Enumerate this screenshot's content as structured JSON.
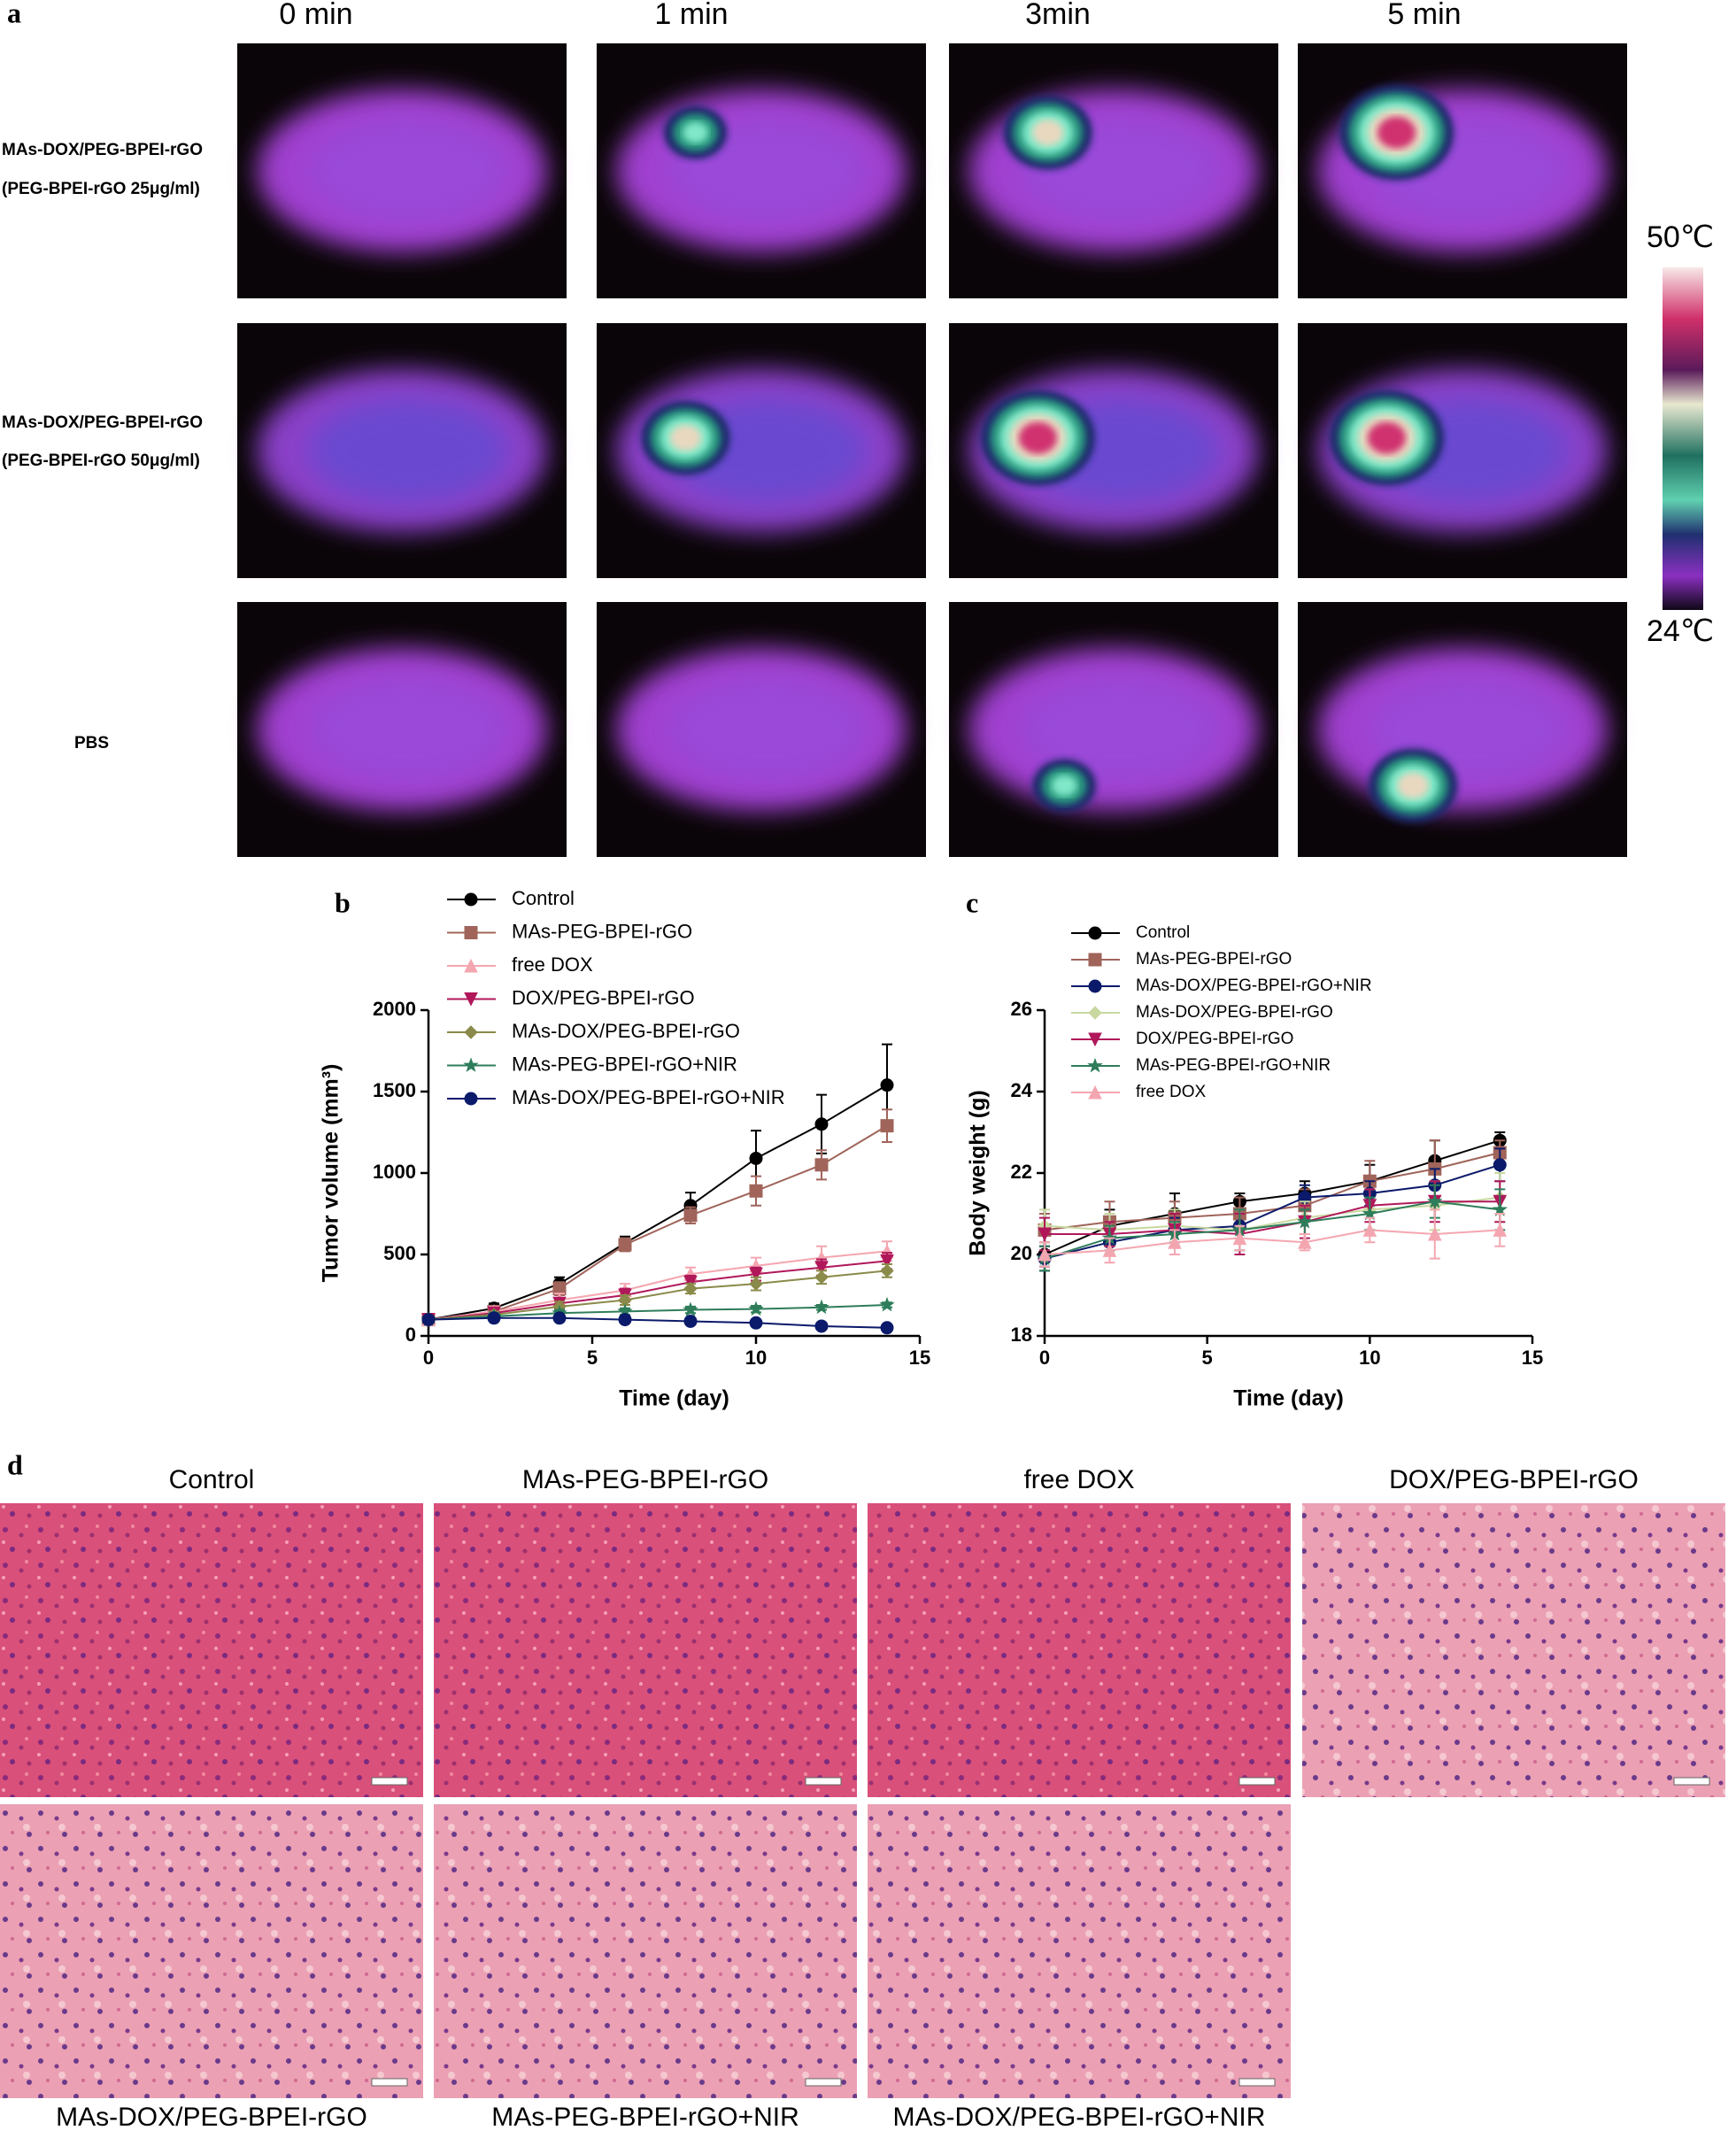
{
  "panel_a": {
    "label": "a",
    "time_labels": [
      "0 min",
      "1 min",
      "3min",
      "5 min"
    ],
    "rows": [
      [
        "MAs-DOX/PEG-BPEI-rGO",
        "(PEG-BPEI-rGO 25μg/ml)"
      ],
      [
        "MAs-DOX/PEG-BPEI-rGO",
        "(PEG-BPEI-rGO 50μg/ml)"
      ],
      [
        "PBS"
      ]
    ],
    "colorbar_max": "50℃",
    "colorbar_min": "24℃"
  },
  "chart_data": [
    {
      "type": "line",
      "panel": "b",
      "x_label": "Time (day)",
      "y_label": "Tumor volume (mm³)",
      "x": [
        0,
        2,
        4,
        6,
        8,
        10,
        12,
        14
      ],
      "xlim": [
        0,
        15
      ],
      "xticks": [
        0,
        5,
        10,
        15
      ],
      "ylim": [
        0,
        2000
      ],
      "yticks": [
        0,
        500,
        1000,
        1500,
        2000
      ],
      "series": [
        {
          "name": "Control",
          "color": "#000000",
          "marker": "circle",
          "values": [
            100,
            170,
            320,
            570,
            800,
            1090,
            1300,
            1540
          ],
          "errors": [
            20,
            30,
            40,
            40,
            80,
            170,
            180,
            250
          ]
        },
        {
          "name": "MAs-PEG-BPEI-rGO",
          "color": "#a0645a",
          "marker": "square",
          "values": [
            100,
            150,
            290,
            560,
            740,
            890,
            1050,
            1290
          ],
          "errors": [
            20,
            30,
            40,
            40,
            50,
            90,
            90,
            100
          ]
        },
        {
          "name": "free DOX",
          "color": "#f4a6b0",
          "marker": "triangle-up",
          "values": [
            100,
            150,
            220,
            280,
            380,
            430,
            480,
            520
          ],
          "errors": [
            20,
            30,
            40,
            40,
            40,
            50,
            70,
            60
          ]
        },
        {
          "name": "DOX/PEG-BPEI-rGO",
          "color": "#b0185a",
          "marker": "triangle-down",
          "values": [
            100,
            140,
            200,
            250,
            330,
            380,
            420,
            460
          ],
          "errors": [
            20,
            20,
            30,
            40,
            40,
            40,
            50,
            50
          ]
        },
        {
          "name": "MAs-DOX/PEG-BPEI-rGO",
          "color": "#8a8a4a",
          "marker": "diamond",
          "values": [
            100,
            130,
            180,
            220,
            290,
            320,
            360,
            400
          ],
          "errors": [
            20,
            20,
            30,
            30,
            30,
            40,
            40,
            40
          ]
        },
        {
          "name": "MAs-PEG-BPEI-rGO+NIR",
          "color": "#2e7d5a",
          "marker": "star",
          "values": [
            100,
            120,
            140,
            150,
            160,
            165,
            175,
            190
          ],
          "errors": [
            20,
            20,
            20,
            20,
            20,
            20,
            15,
            15
          ]
        },
        {
          "name": "MAs-DOX/PEG-BPEI-rGO+NIR",
          "color": "#0b1a6a",
          "marker": "circle",
          "values": [
            100,
            110,
            110,
            100,
            90,
            80,
            60,
            50
          ],
          "errors": [
            20,
            20,
            15,
            15,
            10,
            10,
            10,
            10
          ]
        }
      ]
    },
    {
      "type": "line",
      "panel": "c",
      "x_label": "Time (day)",
      "y_label": "Body weight (g)",
      "x": [
        0,
        2,
        4,
        6,
        8,
        10,
        12,
        14
      ],
      "xlim": [
        0,
        15
      ],
      "xticks": [
        0,
        5,
        10,
        15
      ],
      "ylim": [
        18,
        26
      ],
      "yticks": [
        18,
        20,
        22,
        24,
        26
      ],
      "series": [
        {
          "name": "Control",
          "color": "#000000",
          "marker": "circle",
          "values": [
            20.0,
            20.7,
            21.0,
            21.3,
            21.5,
            21.8,
            22.3,
            22.8
          ],
          "errors": [
            0.3,
            0.4,
            0.5,
            0.2,
            0.3,
            0.4,
            0.5,
            0.2
          ]
        },
        {
          "name": "MAs-PEG-BPEI-rGO",
          "color": "#a0645a",
          "marker": "square",
          "values": [
            20.6,
            20.8,
            20.9,
            21.0,
            21.2,
            21.8,
            22.1,
            22.5
          ],
          "errors": [
            0.4,
            0.5,
            0.4,
            0.4,
            0.4,
            0.5,
            0.7,
            0.3
          ]
        },
        {
          "name": "MAs-DOX/PEG-BPEI-rGO+NIR",
          "color": "#0b1a6a",
          "marker": "circle",
          "values": [
            19.9,
            20.3,
            20.6,
            20.7,
            21.4,
            21.5,
            21.7,
            22.2
          ],
          "errors": [
            0.3,
            0.3,
            0.3,
            0.4,
            0.3,
            0.3,
            0.4,
            0.4
          ]
        },
        {
          "name": "MAs-DOX/PEG-BPEI-rGO",
          "color": "#c8d8a0",
          "marker": "diamond",
          "values": [
            20.7,
            20.6,
            20.7,
            20.6,
            20.9,
            21.1,
            21.2,
            21.4
          ],
          "errors": [
            0.4,
            0.4,
            0.4,
            0.5,
            0.4,
            0.5,
            0.6,
            0.6
          ]
        },
        {
          "name": "DOX/PEG-BPEI-rGO",
          "color": "#b0185a",
          "marker": "triangle-down",
          "values": [
            20.5,
            20.5,
            20.6,
            20.5,
            20.8,
            21.2,
            21.3,
            21.3
          ],
          "errors": [
            0.4,
            0.3,
            0.4,
            0.5,
            0.4,
            0.4,
            0.5,
            0.5
          ]
        },
        {
          "name": "MAs-PEG-BPEI-rGO+NIR",
          "color": "#2e7d5a",
          "marker": "star",
          "values": [
            19.9,
            20.4,
            20.5,
            20.6,
            20.8,
            21.0,
            21.3,
            21.1
          ],
          "errors": [
            0.3,
            0.3,
            0.3,
            0.5,
            0.3,
            0.4,
            0.4,
            0.5
          ]
        },
        {
          "name": "free DOX",
          "color": "#f4a6b0",
          "marker": "triangle-up",
          "values": [
            20.0,
            20.1,
            20.3,
            20.4,
            20.3,
            20.6,
            20.5,
            20.6
          ],
          "errors": [
            0.3,
            0.3,
            0.3,
            0.3,
            0.2,
            0.3,
            0.6,
            0.4
          ]
        }
      ]
    }
  ],
  "panel_d": {
    "label": "d",
    "captions": [
      "Control",
      "MAs-PEG-BPEI-rGO",
      "free DOX",
      "DOX/PEG-BPEI-rGO",
      "MAs-DOX/PEG-BPEI-rGO",
      "MAs-PEG-BPEI-rGO+NIR",
      "MAs-DOX/PEG-BPEI-rGO+NIR"
    ]
  }
}
